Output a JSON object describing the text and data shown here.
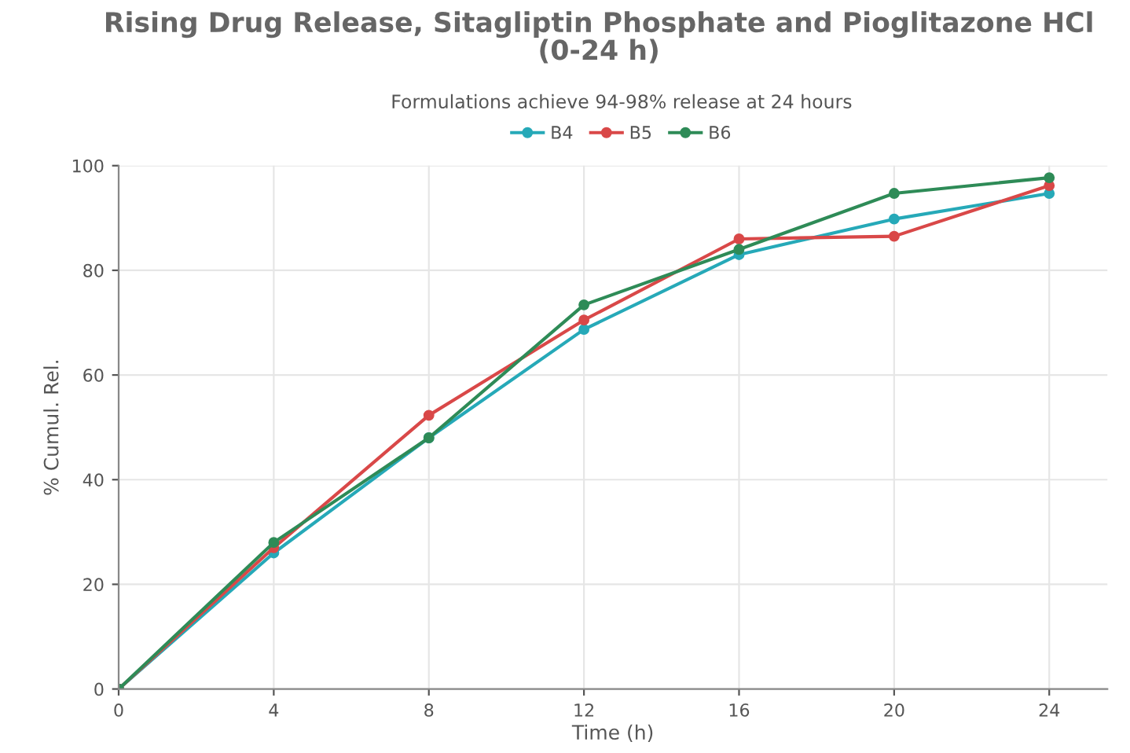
{
  "chart_data": {
    "type": "line",
    "title": "Rising Drug Release, Sitagliptin Phosphate and Pioglitazone HCl\n(0-24 h)",
    "subtitle": "Formulations achieve 94-98% release at 24 hours",
    "xlabel": "Time (h)",
    "ylabel": "% Cumul. Rel.",
    "x": [
      0,
      4,
      8,
      12,
      16,
      20,
      24
    ],
    "series": [
      {
        "name": "B4",
        "color": "#26a9b8",
        "values": [
          0,
          26,
          48,
          68.7,
          83,
          89.8,
          94.7
        ]
      },
      {
        "name": "B5",
        "color": "#d94848",
        "values": [
          0,
          27,
          52.3,
          70.5,
          86,
          86.5,
          96.2
        ]
      },
      {
        "name": "B6",
        "color": "#2e8b57",
        "values": [
          0,
          28,
          48,
          73.4,
          84,
          94.7,
          97.7
        ]
      }
    ],
    "xlim": [
      0,
      25.5
    ],
    "ylim": [
      0,
      100
    ],
    "xticks": [
      0,
      4,
      8,
      12,
      16,
      20,
      24
    ],
    "yticks": [
      0,
      20,
      40,
      60,
      80,
      100
    ],
    "grid": true,
    "legend": "top",
    "marker": "circle",
    "line_style": "solid"
  }
}
